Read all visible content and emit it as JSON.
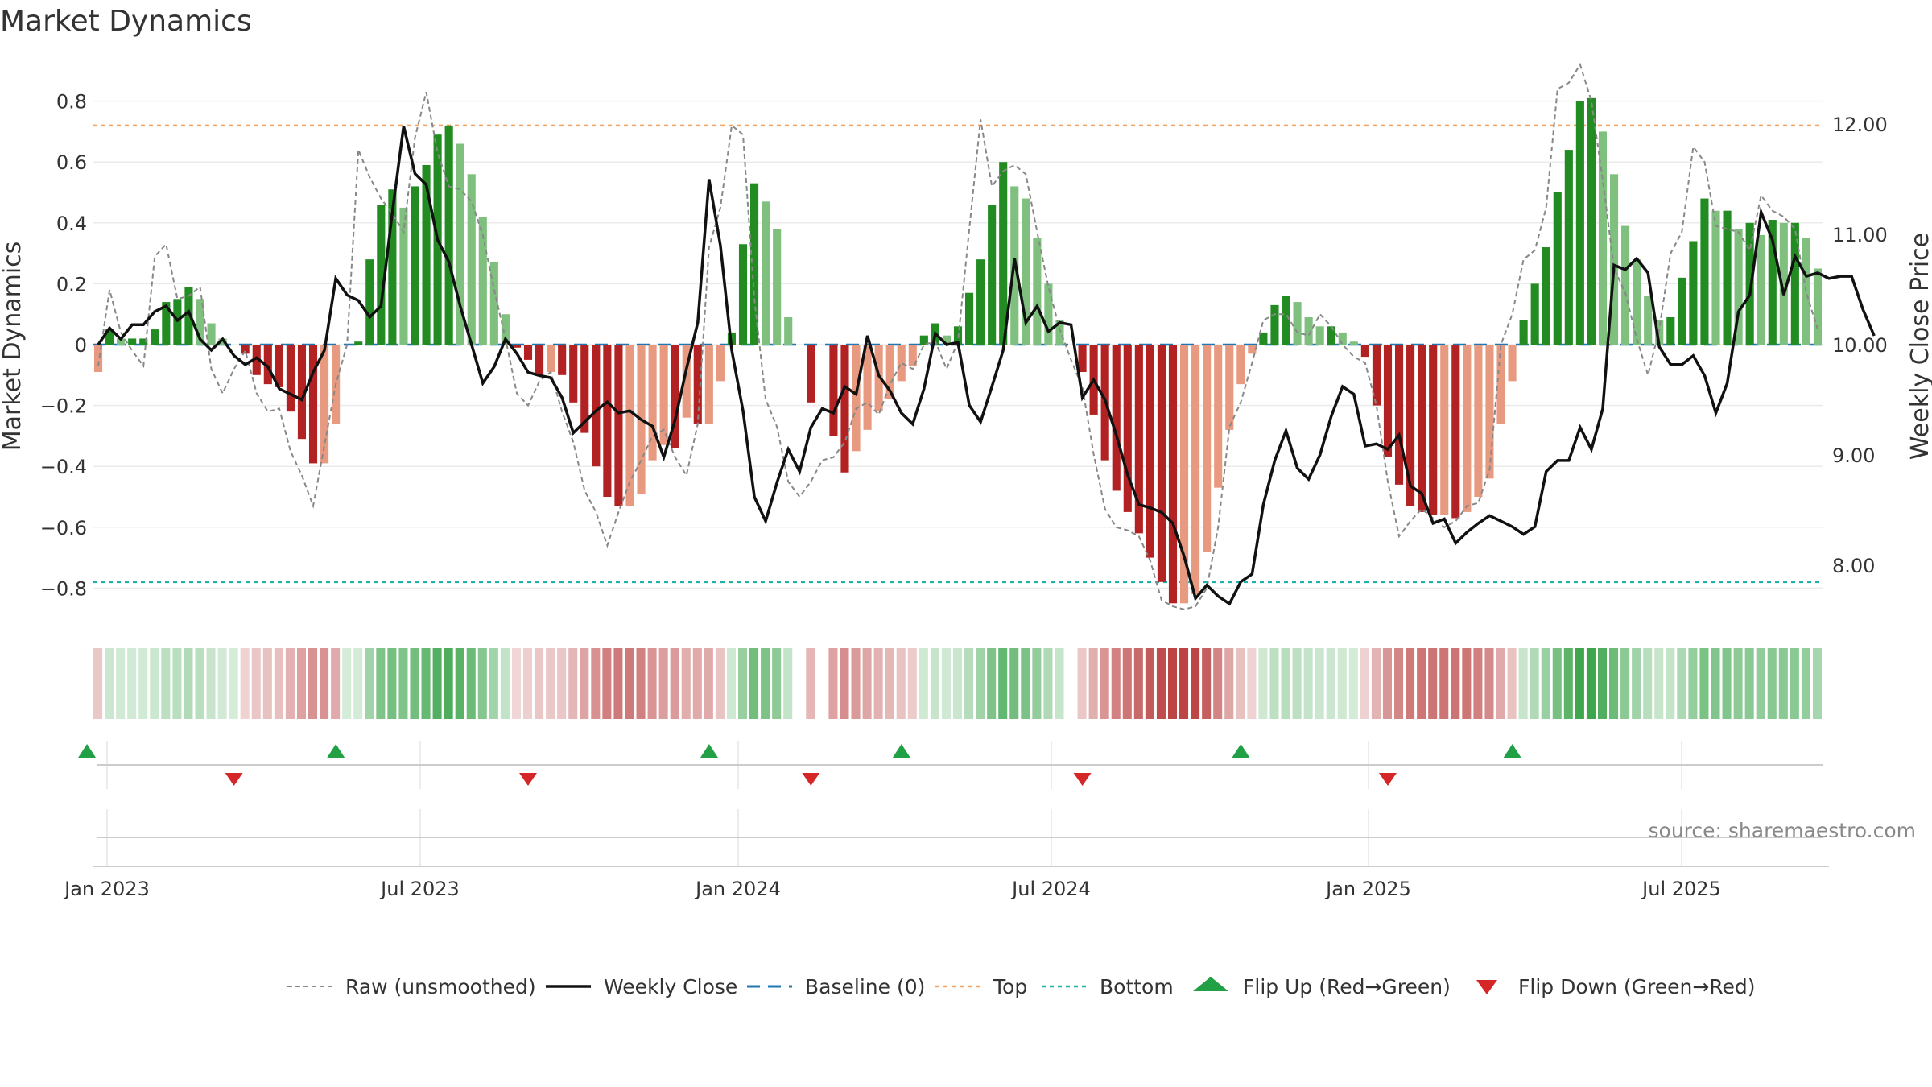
{
  "chart_data": {
    "type": "bar",
    "title": "Market Dynamics",
    "source": "source: sharemaestro.com",
    "ylabel_left": "Market Dynamics",
    "ylabel_right": "Weekly Close Price",
    "ylim_left": [
      -0.92,
      0.92
    ],
    "ylim_right": [
      7.5,
      12.5
    ],
    "yticks_left": [
      "0.8",
      "0.6",
      "0.4",
      "0.2",
      "0",
      "−0.2",
      "−0.4",
      "−0.6",
      "−0.8"
    ],
    "yticks_right": [
      "12.00",
      "11.00",
      "10.00",
      "9.00",
      "8.00"
    ],
    "xticks": [
      "Jan 2023",
      "Jul 2023",
      "Jan 2024",
      "Jul 2024",
      "Jan 2025",
      "Jul 2025"
    ],
    "top_threshold": 0.72,
    "bottom_threshold": -0.78,
    "grid": true,
    "legend_position": "bottom-center",
    "legend": [
      "Raw (unsmoothed)",
      "Weekly Close",
      "Baseline (0)",
      "Top",
      "Bottom",
      "Flip Up (Red→Green)",
      "Flip Down (Green→Red)"
    ],
    "colors": {
      "strong_green": "#228b22",
      "light_green": "#7fc07f",
      "strong_red": "#b22222",
      "light_red": "#e89a80",
      "weekly_close": "#111111",
      "raw": "#888888",
      "baseline": "#1f77b4",
      "top": "#f4a460",
      "bottom": "#20b2aa",
      "flip_up": "#22a045",
      "flip_down": "#d62728"
    },
    "dynamics": [
      -0.09,
      0.05,
      0.02,
      0.02,
      0.02,
      0.05,
      0.14,
      0.15,
      0.19,
      0.15,
      0.07,
      0.02,
      0.0,
      -0.03,
      -0.1,
      -0.13,
      -0.14,
      -0.22,
      -0.31,
      -0.39,
      -0.39,
      -0.26,
      0.0,
      0.01,
      0.28,
      0.46,
      0.51,
      0.45,
      0.52,
      0.59,
      0.69,
      0.72,
      0.66,
      0.56,
      0.42,
      0.27,
      0.1,
      -0.01,
      -0.05,
      -0.1,
      -0.09,
      -0.1,
      -0.19,
      -0.29,
      -0.4,
      -0.5,
      -0.53,
      -0.53,
      -0.49,
      -0.38,
      -0.33,
      -0.34,
      -0.24,
      -0.26,
      -0.26,
      -0.12,
      0.04,
      0.33,
      0.53,
      0.47,
      0.38,
      0.09,
      null,
      -0.19,
      null,
      -0.3,
      -0.42,
      -0.35,
      -0.28,
      -0.22,
      -0.18,
      -0.12,
      -0.07,
      0.03,
      0.07,
      0.03,
      0.06,
      0.17,
      0.28,
      0.46,
      0.6,
      0.52,
      0.48,
      0.35,
      0.2,
      0.08,
      null,
      -0.09,
      -0.23,
      -0.38,
      -0.48,
      -0.55,
      -0.62,
      -0.7,
      -0.78,
      -0.85,
      -0.85,
      -0.82,
      -0.68,
      -0.47,
      -0.28,
      -0.13,
      -0.03,
      0.04,
      0.13,
      0.16,
      0.14,
      0.09,
      0.06,
      0.06,
      0.04,
      0.01,
      -0.04,
      -0.2,
      -0.37,
      -0.46,
      -0.53,
      -0.55,
      -0.56,
      -0.56,
      -0.57,
      -0.55,
      -0.5,
      -0.44,
      -0.26,
      -0.12,
      0.08,
      0.2,
      0.32,
      0.5,
      0.64,
      0.8,
      0.81,
      0.7,
      0.56,
      0.39,
      0.28,
      0.16,
      0.08,
      0.09,
      0.22,
      0.34,
      0.48,
      0.44,
      0.44,
      0.38,
      0.4,
      0.36,
      0.41,
      0.4,
      0.4,
      0.35,
      0.25
    ],
    "raw": [
      -0.07,
      0.18,
      0.04,
      -0.02,
      -0.07,
      0.29,
      0.33,
      0.15,
      0.16,
      0.19,
      -0.08,
      -0.16,
      -0.08,
      -0.02,
      -0.16,
      -0.22,
      -0.21,
      -0.35,
      -0.43,
      -0.53,
      -0.33,
      -0.13,
      0.0,
      0.64,
      0.55,
      0.48,
      0.43,
      0.37,
      0.68,
      0.83,
      0.63,
      0.52,
      0.51,
      0.47,
      0.36,
      0.18,
      0.02,
      -0.16,
      -0.2,
      -0.12,
      -0.09,
      -0.22,
      -0.32,
      -0.48,
      -0.55,
      -0.66,
      -0.55,
      -0.45,
      -0.38,
      -0.3,
      -0.28,
      -0.37,
      -0.43,
      -0.26,
      0.32,
      0.45,
      0.72,
      0.69,
      0.15,
      -0.18,
      -0.27,
      -0.45,
      -0.5,
      -0.45,
      -0.38,
      -0.37,
      -0.32,
      -0.21,
      -0.19,
      -0.23,
      -0.13,
      -0.06,
      -0.08,
      0.0,
      0.01,
      -0.08,
      0.01,
      0.38,
      0.74,
      0.52,
      0.57,
      0.59,
      0.56,
      0.37,
      0.19,
      0.05,
      -0.05,
      -0.14,
      -0.36,
      -0.54,
      -0.6,
      -0.61,
      -0.63,
      -0.71,
      -0.84,
      -0.86,
      -0.87,
      -0.86,
      -0.8,
      -0.6,
      -0.27,
      -0.19,
      -0.06,
      0.08,
      0.1,
      0.1,
      0.04,
      0.03,
      0.1,
      0.06,
      0.0,
      -0.04,
      -0.06,
      -0.2,
      -0.45,
      -0.63,
      -0.58,
      -0.54,
      -0.57,
      -0.6,
      -0.58,
      -0.53,
      -0.52,
      -0.41,
      0.0,
      0.1,
      0.28,
      0.31,
      0.45,
      0.84,
      0.86,
      0.92,
      0.8,
      0.54,
      0.25,
      0.17,
      0.02,
      -0.1,
      0.05,
      0.3,
      0.37,
      0.65,
      0.6,
      0.39,
      0.38,
      0.37,
      0.31,
      0.49,
      0.44,
      0.42,
      0.38,
      0.17,
      0.05
    ],
    "weekly_close": [
      10.0,
      10.15,
      10.05,
      10.18,
      10.18,
      10.3,
      10.35,
      10.22,
      10.3,
      10.05,
      9.95,
      10.05,
      9.9,
      9.82,
      9.88,
      9.8,
      9.6,
      9.55,
      9.5,
      9.75,
      9.95,
      10.6,
      10.45,
      10.4,
      10.25,
      10.35,
      11.2,
      11.98,
      11.55,
      11.45,
      10.95,
      10.75,
      10.35,
      10.0,
      9.65,
      9.8,
      10.05,
      9.92,
      9.75,
      9.72,
      9.7,
      9.52,
      9.2,
      9.3,
      9.4,
      9.48,
      9.38,
      9.4,
      9.32,
      9.26,
      8.98,
      9.32,
      9.78,
      10.2,
      11.5,
      10.9,
      9.95,
      9.4,
      8.62,
      8.4,
      8.75,
      9.05,
      8.85,
      9.25,
      9.42,
      9.38,
      9.62,
      9.55,
      10.08,
      9.72,
      9.58,
      9.38,
      9.28,
      9.6,
      10.1,
      10.0,
      10.02,
      9.45,
      9.3,
      9.62,
      9.95,
      10.78,
      10.2,
      10.35,
      10.12,
      10.2,
      10.18,
      9.52,
      9.68,
      9.5,
      9.18,
      8.82,
      8.55,
      8.52,
      8.48,
      8.38,
      8.08,
      7.7,
      7.82,
      7.72,
      7.65,
      7.85,
      7.92,
      8.55,
      8.95,
      9.22,
      8.88,
      8.78,
      9.0,
      9.35,
      9.62,
      9.55,
      9.08,
      9.1,
      9.05,
      9.18,
      8.72,
      8.65,
      8.38,
      8.42,
      8.2,
      8.3,
      8.38,
      8.45,
      8.4,
      8.35,
      8.28,
      8.35,
      8.85,
      8.95,
      8.95,
      9.25,
      9.05,
      9.42,
      10.72,
      10.68,
      10.78,
      10.65,
      9.98,
      9.82,
      9.82,
      9.9,
      9.72,
      9.38,
      9.65,
      10.3,
      10.45,
      11.2,
      10.95,
      10.45,
      10.8,
      10.62,
      10.65,
      10.6,
      10.62,
      10.62,
      10.32,
      10.08
    ]
  },
  "strip": {
    "caption": ""
  },
  "flips": {
    "up_weeks": [
      1,
      23,
      56,
      73,
      103,
      127
    ],
    "down_weeks": [
      12,
      38,
      63,
      87,
      114
    ]
  }
}
